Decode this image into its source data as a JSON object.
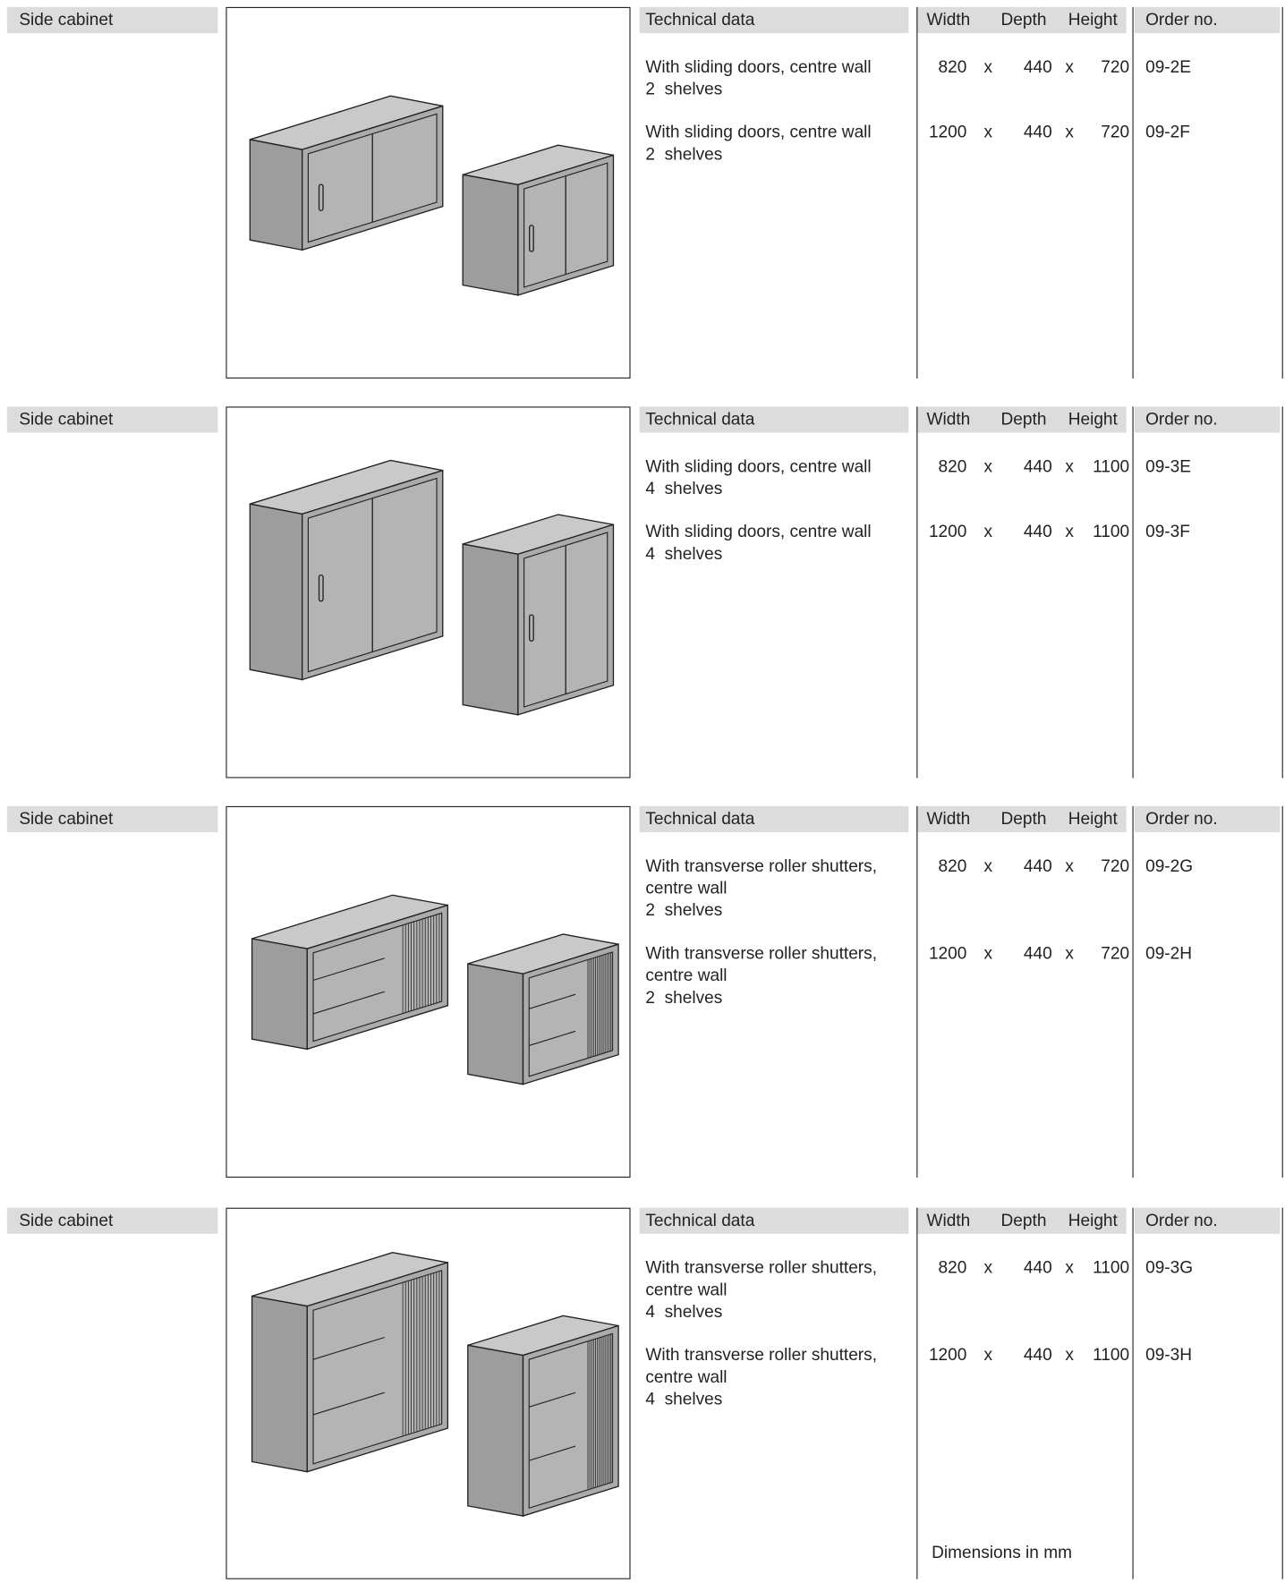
{
  "sections": [
    {
      "label": "Side cabinet",
      "header": {
        "technical_data": "Technical data",
        "width": "Width",
        "depth": "Depth",
        "height": "Height",
        "order_no": "Order no."
      },
      "items": [
        {
          "description": [
            "With sliding doors, centre wall",
            "2  shelves"
          ],
          "width": 820,
          "depth": 440,
          "height": 720,
          "order_no": "09-2E"
        },
        {
          "description": [
            "With sliding doors, centre wall",
            "2  shelves"
          ],
          "width": 1200,
          "depth": 440,
          "height": 720,
          "order_no": "09-2F"
        }
      ]
    },
    {
      "label": "Side cabinet",
      "header": {
        "technical_data": "Technical data",
        "width": "Width",
        "depth": "Depth",
        "height": "Height",
        "order_no": "Order no."
      },
      "items": [
        {
          "description": [
            "With sliding doors, centre wall",
            "4  shelves"
          ],
          "width": 820,
          "depth": 440,
          "height": 1100,
          "order_no": "09-3E"
        },
        {
          "description": [
            "With sliding doors, centre wall",
            "4  shelves"
          ],
          "width": 1200,
          "depth": 440,
          "height": 1100,
          "order_no": "09-3F"
        }
      ]
    },
    {
      "label": "Side cabinet",
      "header": {
        "technical_data": "Technical data",
        "width": "Width",
        "depth": "Depth",
        "height": "Height",
        "order_no": "Order no."
      },
      "items": [
        {
          "description": [
            "With transverse roller shutters,",
            "centre wall",
            "2  shelves"
          ],
          "width": 820,
          "depth": 440,
          "height": 720,
          "order_no": "09-2G"
        },
        {
          "description": [
            "With transverse roller shutters,",
            "centre wall",
            "2  shelves"
          ],
          "width": 1200,
          "depth": 440,
          "height": 720,
          "order_no": "09-2H"
        }
      ]
    },
    {
      "label": "Side cabinet",
      "header": {
        "technical_data": "Technical data",
        "width": "Width",
        "depth": "Depth",
        "height": "Height",
        "order_no": "Order no."
      },
      "items": [
        {
          "description": [
            "With transverse roller shutters,",
            "centre wall",
            "4  shelves"
          ],
          "width": 820,
          "depth": 440,
          "height": 1100,
          "order_no": "09-3G"
        },
        {
          "description": [
            "With transverse roller shutters,",
            "centre wall",
            "4  shelves"
          ],
          "width": 1200,
          "depth": 440,
          "height": 1100,
          "order_no": "09-3H"
        }
      ]
    }
  ],
  "dimension_separator": "x",
  "footer": "Dimensions in mm"
}
